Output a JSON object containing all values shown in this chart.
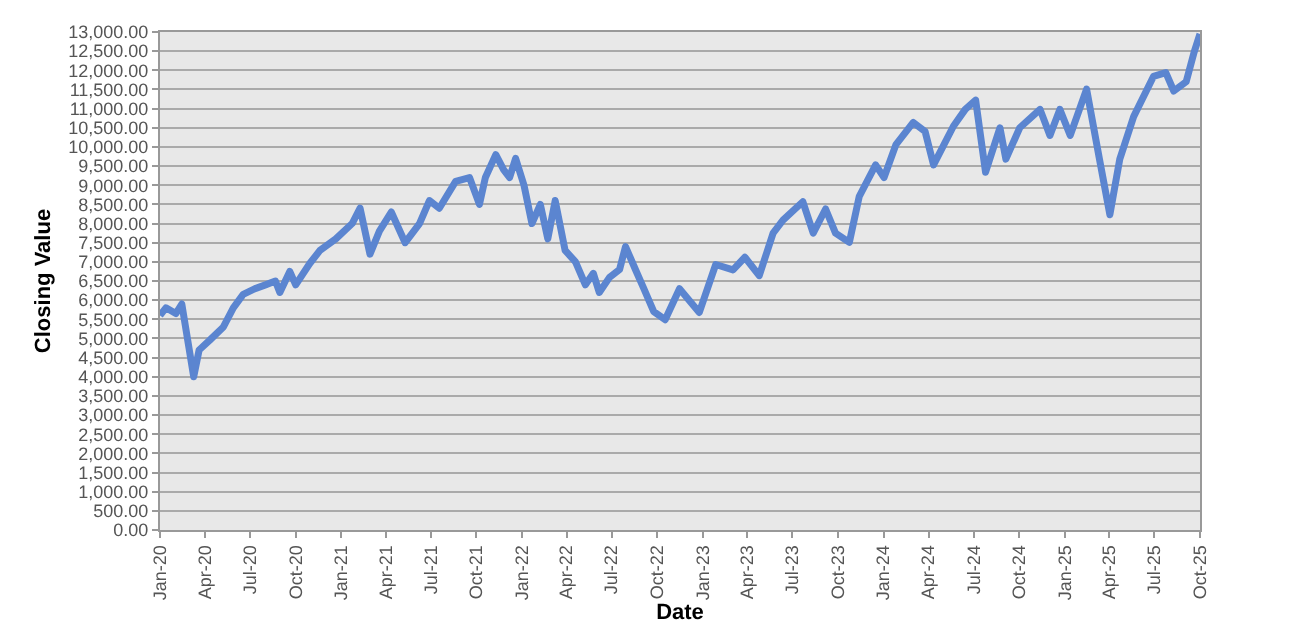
{
  "chart_data": {
    "type": "line",
    "xlabel": "Date",
    "ylabel": "Closing Value",
    "x": [
      "2020-01-01",
      "2020-01-13",
      "2020-02-02",
      "2020-02-14",
      "2020-03-09",
      "2020-03-20",
      "2020-04-10",
      "2020-05-08",
      "2020-05-28",
      "2020-06-17",
      "2020-07-11",
      "2020-08-01",
      "2020-08-21",
      "2020-08-30",
      "2020-09-19",
      "2020-10-01",
      "2020-10-29",
      "2020-11-19",
      "2020-12-21",
      "2021-01-23",
      "2021-02-08",
      "2021-02-28",
      "2021-03-19",
      "2021-04-12",
      "2021-05-10",
      "2021-06-08",
      "2021-06-28",
      "2021-07-18",
      "2021-08-20",
      "2021-09-17",
      "2021-10-07",
      "2021-10-19",
      "2021-11-09",
      "2021-11-25",
      "2021-12-07",
      "2021-12-19",
      "2022-01-05",
      "2022-01-21",
      "2022-02-07",
      "2022-02-22",
      "2022-03-09",
      "2022-03-29",
      "2022-04-19",
      "2022-05-09",
      "2022-05-25",
      "2022-06-06",
      "2022-06-27",
      "2022-07-17",
      "2022-07-29",
      "2022-08-18",
      "2022-09-04",
      "2022-09-24",
      "2022-10-17",
      "2022-11-15",
      "2022-12-25",
      "2023-01-27",
      "2023-03-03",
      "2023-03-27",
      "2023-04-25",
      "2023-05-23",
      "2023-06-12",
      "2023-07-22",
      "2023-08-12",
      "2023-09-06",
      "2023-09-26",
      "2023-10-24",
      "2023-11-13",
      "2023-12-16",
      "2024-01-02",
      "2024-01-26",
      "2024-03-01",
      "2024-03-25",
      "2024-04-11",
      "2024-05-21",
      "2024-06-14",
      "2024-07-05",
      "2024-07-25",
      "2024-08-23",
      "2024-09-04",
      "2024-10-02",
      "2024-11-12",
      "2024-12-02",
      "2024-12-22",
      "2025-01-12",
      "2025-02-14",
      "2025-03-12",
      "2025-04-02",
      "2025-04-22",
      "2025-05-20",
      "2025-06-29",
      "2025-07-24",
      "2025-08-09",
      "2025-09-03",
      "2025-09-19",
      "2025-10-01"
    ],
    "series": [
      {
        "color": "#5b85d0",
        "values": [
          5600,
          5800,
          5650,
          5900,
          4000,
          4700,
          4950,
          5300,
          5800,
          6150,
          6300,
          6400,
          6500,
          6200,
          6750,
          6400,
          6950,
          7300,
          7600,
          8000,
          8400,
          7200,
          7800,
          8300,
          7500,
          8000,
          8600,
          8400,
          9100,
          9200,
          8500,
          9200,
          9800,
          9400,
          9200,
          9700,
          9000,
          8000,
          8500,
          7600,
          8600,
          7300,
          7000,
          6400,
          6700,
          6200,
          6600,
          6800,
          7400,
          6800,
          6300,
          5700,
          5490,
          6300,
          5680,
          6930,
          6790,
          7120,
          6640,
          7750,
          8090,
          8570,
          7750,
          8380,
          7750,
          7510,
          8710,
          9530,
          9200,
          10060,
          10640,
          10400,
          9530,
          10540,
          10980,
          11220,
          9340,
          10500,
          9680,
          10500,
          10980,
          10300,
          10980,
          10300,
          11510,
          9680,
          8230,
          9680,
          10790,
          11840,
          11940,
          11460,
          11700,
          12470,
          12950
        ]
      }
    ],
    "xlim": [
      "2020-01-01",
      "2025-10-01"
    ],
    "xticks": [
      {
        "value": "2020-01-01",
        "label": "Jan-20"
      },
      {
        "value": "2020-04-01",
        "label": "Apr-20"
      },
      {
        "value": "2020-07-01",
        "label": "Jul-20"
      },
      {
        "value": "2020-10-01",
        "label": "Oct-20"
      },
      {
        "value": "2021-01-01",
        "label": "Jan-21"
      },
      {
        "value": "2021-04-01",
        "label": "Apr-21"
      },
      {
        "value": "2021-07-01",
        "label": "Jul-21"
      },
      {
        "value": "2021-10-01",
        "label": "Oct-21"
      },
      {
        "value": "2022-01-01",
        "label": "Jan-22"
      },
      {
        "value": "2022-04-01",
        "label": "Apr-22"
      },
      {
        "value": "2022-07-01",
        "label": "Jul-22"
      },
      {
        "value": "2022-10-01",
        "label": "Oct-22"
      },
      {
        "value": "2023-01-01",
        "label": "Jan-23"
      },
      {
        "value": "2023-04-01",
        "label": "Apr-23"
      },
      {
        "value": "2023-07-01",
        "label": "Jul-23"
      },
      {
        "value": "2023-10-01",
        "label": "Oct-23"
      },
      {
        "value": "2024-01-01",
        "label": "Jan-24"
      },
      {
        "value": "2024-04-01",
        "label": "Apr-24"
      },
      {
        "value": "2024-07-01",
        "label": "Jul-24"
      },
      {
        "value": "2024-10-01",
        "label": "Oct-24"
      },
      {
        "value": "2025-01-01",
        "label": "Jan-25"
      },
      {
        "value": "2025-04-01",
        "label": "Apr-25"
      },
      {
        "value": "2025-07-01",
        "label": "Jul-25"
      },
      {
        "value": "2025-10-01",
        "label": "Oct-25"
      }
    ],
    "ylim": [
      0,
      13000
    ],
    "yticks": [
      {
        "value": 0,
        "label": "0.00"
      },
      {
        "value": 500,
        "label": "500.00"
      },
      {
        "value": 1000,
        "label": "1,000.00"
      },
      {
        "value": 1500,
        "label": "1,500.00"
      },
      {
        "value": 2000,
        "label": "2,000.00"
      },
      {
        "value": 2500,
        "label": "2,500.00"
      },
      {
        "value": 3000,
        "label": "3,000.00"
      },
      {
        "value": 3500,
        "label": "3,500.00"
      },
      {
        "value": 4000,
        "label": "4,000.00"
      },
      {
        "value": 4500,
        "label": "4,500.00"
      },
      {
        "value": 5000,
        "label": "5,000.00"
      },
      {
        "value": 5500,
        "label": "5,500.00"
      },
      {
        "value": 6000,
        "label": "6,000.00"
      },
      {
        "value": 6500,
        "label": "6,500.00"
      },
      {
        "value": 7000,
        "label": "7,000.00"
      },
      {
        "value": 7500,
        "label": "7,500.00"
      },
      {
        "value": 8000,
        "label": "8,000.00"
      },
      {
        "value": 8500,
        "label": "8,500.00"
      },
      {
        "value": 9000,
        "label": "9,000.00"
      },
      {
        "value": 9500,
        "label": "9,500.00"
      },
      {
        "value": 10000,
        "label": "10,000.00"
      },
      {
        "value": 10500,
        "label": "10,500.00"
      },
      {
        "value": 11000,
        "label": "11,000.00"
      },
      {
        "value": 11500,
        "label": "11,500.00"
      },
      {
        "value": 12000,
        "label": "12,000.00"
      },
      {
        "value": 12500,
        "label": "12,500.00"
      },
      {
        "value": 13000,
        "label": "13,000.00"
      }
    ],
    "grid": "y",
    "marker": "none",
    "line_style": "solid"
  }
}
